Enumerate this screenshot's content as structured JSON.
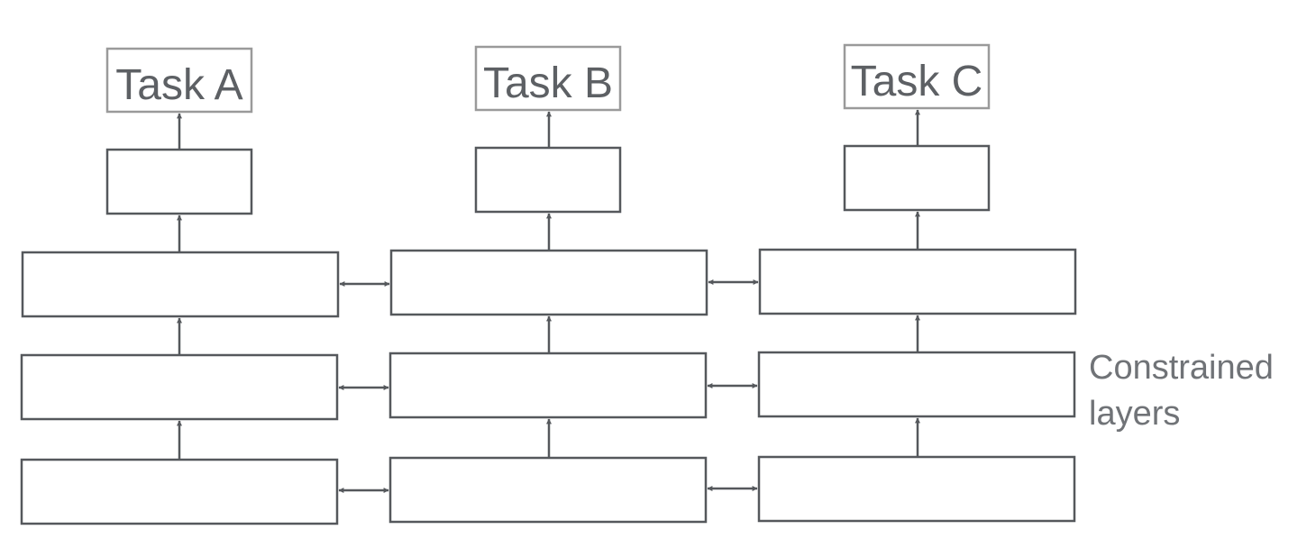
{
  "tasks": [
    {
      "id": "a",
      "label": "Task A"
    },
    {
      "id": "b",
      "label": "Task B"
    },
    {
      "id": "c",
      "label": "Task C"
    }
  ],
  "annotation": {
    "line1": "Constrained",
    "line2": "layers"
  },
  "structure": {
    "task_specific_layers_per_column": 1,
    "shared_layers_per_column": 3,
    "constrained_connections": "bidirectional between adjacent columns at each shared layer"
  },
  "colors": {
    "task_border": "#9a9a9a",
    "layer_border": "#55585c",
    "text": "#5d6064",
    "annotation_text": "#707377"
  }
}
